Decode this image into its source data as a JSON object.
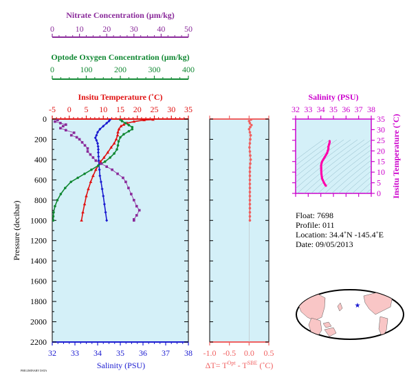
{
  "chart_data": [
    {
      "type": "line",
      "panel": "main-profile",
      "ylabel": "Pressure (decibar)",
      "ylim": [
        2200,
        0
      ],
      "yticks": [
        "0",
        "200",
        "400",
        "600",
        "800",
        "1000",
        "1200",
        "1400",
        "1600",
        "1800",
        "2000",
        "2200"
      ],
      "axes": {
        "salinity": {
          "label": "Salinity (PSU)",
          "range": [
            32,
            38
          ],
          "ticks": [
            "32",
            "33",
            "34",
            "35",
            "36",
            "37",
            "38"
          ],
          "color": "#1a1ad0"
        },
        "temperature": {
          "label": "Insitu Temperature (˚C)",
          "range": [
            -5,
            35
          ],
          "ticks": [
            "-5",
            "0",
            "5",
            "10",
            "15",
            "20",
            "25",
            "30",
            "35"
          ],
          "color": "#e01010"
        },
        "oxygen": {
          "label": "Optode Oxygen Concentration (µm/kg)",
          "range": [
            0,
            400
          ],
          "ticks": [
            "0",
            "100",
            "200",
            "300",
            "400"
          ],
          "color": "#118833"
        },
        "nitrate": {
          "label": "Nitrate Concentration (µm/kg)",
          "range": [
            0,
            50
          ],
          "ticks": [
            "0",
            "10",
            "20",
            "30",
            "40",
            "50"
          ],
          "color": "#8a2a9a"
        }
      },
      "series": [
        {
          "key": "temperature",
          "color": "#e01010",
          "marker": "triangle",
          "points": [
            [
              24.6,
              5
            ],
            [
              22,
              10
            ],
            [
              19,
              25
            ],
            [
              17,
              40
            ],
            [
              16,
              55
            ],
            [
              15.2,
              70
            ],
            [
              14.6,
              100
            ],
            [
              14.3,
              130
            ],
            [
              14.2,
              160
            ],
            [
              13.8,
              200
            ],
            [
              13.2,
              240
            ],
            [
              12.3,
              280
            ],
            [
              11.3,
              330
            ],
            [
              10.2,
              380
            ],
            [
              9.2,
              420
            ],
            [
              8.5,
              460
            ],
            [
              7.8,
              500
            ],
            [
              7.0,
              560
            ],
            [
              6.3,
              620
            ],
            [
              5.6,
              690
            ],
            [
              5.0,
              760
            ],
            [
              4.5,
              840
            ],
            [
              4.0,
              920
            ],
            [
              3.6,
              1000
            ]
          ]
        },
        {
          "key": "salinity",
          "color": "#1a1ad0",
          "marker": "diamond",
          "points": [
            [
              34.55,
              5
            ],
            [
              34.5,
              20
            ],
            [
              34.4,
              40
            ],
            [
              34.25,
              70
            ],
            [
              34.1,
              100
            ],
            [
              34.0,
              130
            ],
            [
              33.95,
              160
            ],
            [
              33.9,
              185
            ],
            [
              33.95,
              210
            ],
            [
              34.0,
              240
            ],
            [
              34.02,
              270
            ],
            [
              34.03,
              300
            ],
            [
              34.03,
              330
            ],
            [
              34.04,
              370
            ],
            [
              34.05,
              410
            ],
            [
              34.06,
              450
            ],
            [
              34.08,
              500
            ],
            [
              34.1,
              560
            ],
            [
              34.15,
              620
            ],
            [
              34.2,
              690
            ],
            [
              34.25,
              760
            ],
            [
              34.3,
              840
            ],
            [
              34.35,
              920
            ],
            [
              34.4,
              1000
            ]
          ]
        },
        {
          "key": "oxygen",
          "color": "#118833",
          "marker": "circle",
          "points": [
            [
              200,
              5
            ],
            [
              205,
              20
            ],
            [
              215,
              40
            ],
            [
              225,
              60
            ],
            [
              235,
              80
            ],
            [
              235,
              100
            ],
            [
              225,
              120
            ],
            [
              210,
              150
            ],
            [
              200,
              180
            ],
            [
              195,
              220
            ],
            [
              193,
              260
            ],
            [
              190,
              300
            ],
            [
              182,
              340
            ],
            [
              170,
              380
            ],
            [
              155,
              420
            ],
            [
              135,
              460
            ],
            [
              115,
              500
            ],
            [
              95,
              540
            ],
            [
              75,
              580
            ],
            [
              55,
              620
            ],
            [
              38,
              680
            ],
            [
              25,
              740
            ],
            [
              15,
              800
            ],
            [
              8,
              860
            ],
            [
              4,
              920
            ],
            [
              3,
              960
            ],
            [
              3,
              1000
            ]
          ]
        },
        {
          "key": "nitrate",
          "color": "#8a2a9a",
          "marker": "square",
          "points": [
            [
              2,
              10
            ],
            [
              1,
              25
            ],
            [
              3,
              40
            ],
            [
              5,
              55
            ],
            [
              4,
              70
            ],
            [
              3,
              90
            ],
            [
              5,
              110
            ],
            [
              8,
              135
            ],
            [
              7,
              160
            ],
            [
              9,
              180
            ],
            [
              10,
              200
            ],
            [
              11,
              230
            ],
            [
              12,
              260
            ],
            [
              13,
              290
            ],
            [
              13,
              320
            ],
            [
              14,
              350
            ],
            [
              15,
              380
            ],
            [
              16,
              410
            ],
            [
              18,
              440
            ],
            [
              20,
              470
            ],
            [
              22,
              500
            ],
            [
              24,
              540
            ],
            [
              26,
              580
            ],
            [
              27,
              620
            ],
            [
              28,
              680
            ],
            [
              29,
              740
            ],
            [
              30,
              800
            ],
            [
              31,
              860
            ],
            [
              32,
              900
            ],
            [
              31,
              950
            ],
            [
              30,
              990
            ],
            [
              30,
              1000
            ]
          ]
        }
      ]
    },
    {
      "type": "scatter",
      "panel": "delta-t",
      "xlabel": "ΔT= T",
      "xlabel_sup1": "Opt",
      "xlabel_mid": " - T",
      "xlabel_sup2": "SBE",
      "xlabel_unit": " (˚C)",
      "xlim": [
        -1.0,
        0.5
      ],
      "xticks": [
        "-1.0",
        "-0.5",
        "0.0",
        "0.5"
      ],
      "color": "#f06060",
      "points": [
        [
          0.05,
          5
        ],
        [
          0.0,
          20
        ],
        [
          0.02,
          40
        ],
        [
          0.06,
          60
        ],
        [
          0.03,
          80
        ],
        [
          0.0,
          100
        ],
        [
          0.02,
          130
        ],
        [
          0.04,
          160
        ],
        [
          0.03,
          200
        ],
        [
          0.02,
          240
        ],
        [
          0.01,
          280
        ],
        [
          0.02,
          320
        ],
        [
          0.03,
          360
        ],
        [
          0.04,
          400
        ],
        [
          0.03,
          440
        ],
        [
          0.02,
          480
        ],
        [
          0.02,
          520
        ],
        [
          0.02,
          560
        ],
        [
          0.02,
          600
        ],
        [
          0.02,
          640
        ],
        [
          0.02,
          680
        ],
        [
          0.02,
          720
        ],
        [
          0.02,
          760
        ],
        [
          0.02,
          800
        ],
        [
          0.02,
          840
        ],
        [
          0.02,
          880
        ],
        [
          0.02,
          920
        ],
        [
          0.02,
          960
        ],
        [
          0.02,
          1000
        ]
      ]
    },
    {
      "type": "line",
      "panel": "ts-diagram",
      "xlabel": "Salinity (PSU)",
      "ylabel": "Insitu Temperature (˚C)",
      "xlim": [
        32,
        38
      ],
      "ylim": [
        0,
        35
      ],
      "xticks": [
        "32",
        "33",
        "34",
        "35",
        "36",
        "37",
        "38"
      ],
      "yticks": [
        "0",
        "5",
        "10",
        "15",
        "20",
        "25",
        "30",
        "35"
      ],
      "color": "#ff00aa",
      "points": [
        [
          34.4,
          3.6
        ],
        [
          34.35,
          4
        ],
        [
          34.25,
          5
        ],
        [
          34.15,
          6.3
        ],
        [
          34.1,
          7
        ],
        [
          34.08,
          7.8
        ],
        [
          34.05,
          9
        ],
        [
          34.04,
          10
        ],
        [
          34.03,
          11
        ],
        [
          34.03,
          12
        ],
        [
          34.02,
          13
        ],
        [
          34.05,
          14
        ],
        [
          34.1,
          15
        ],
        [
          34.2,
          16
        ],
        [
          34.3,
          17
        ],
        [
          34.4,
          18
        ],
        [
          34.5,
          19
        ],
        [
          34.55,
          20
        ],
        [
          34.6,
          21
        ],
        [
          34.6,
          22
        ],
        [
          34.65,
          23
        ],
        [
          34.7,
          24
        ],
        [
          34.7,
          24.6
        ]
      ]
    }
  ],
  "info": {
    "float": "Float:  7698",
    "profile": "Profile:  011",
    "location": "Location:  34.4˚N  -145.4˚E",
    "date": "Date:  09/05/2013"
  },
  "map": {
    "land_color": "#f9c6c6",
    "ocean_color": "#ffffff",
    "marker_color": "#1a1ad0"
  },
  "footer_tag": "PRELIMINARY DATA"
}
